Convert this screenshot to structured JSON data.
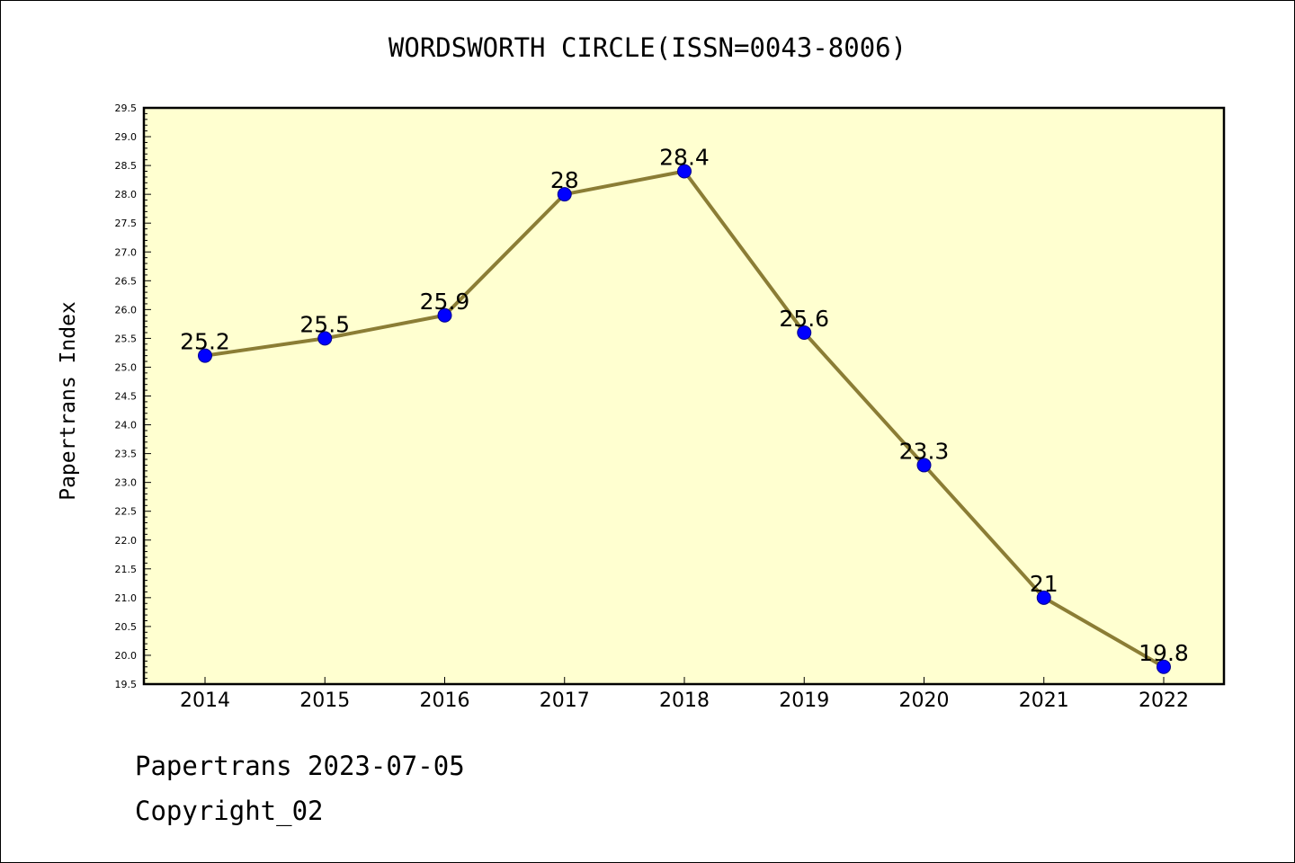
{
  "title": "WORDSWORTH CIRCLE(ISSN=0043-8006)",
  "chart_data": {
    "type": "line",
    "title": "WORDSWORTH CIRCLE(ISSN=0043-8006)",
    "xlabel": "",
    "ylabel": "Papertrans Index",
    "categories": [
      "2014",
      "2015",
      "2016",
      "2017",
      "2018",
      "2019",
      "2020",
      "2021",
      "2022"
    ],
    "values": [
      25.2,
      25.5,
      25.9,
      28,
      28.4,
      25.6,
      23.3,
      21,
      19.8
    ],
    "data_labels": [
      "25.2",
      "25.5",
      "25.9",
      "28",
      "28.4",
      "25.6",
      "23.3",
      "21",
      "19.8"
    ],
    "ylim": [
      19.5,
      29.5
    ],
    "ytick_step": 0.5,
    "grid": false,
    "colors": {
      "plot_background": "#ffffd0",
      "line": "#8b7d35",
      "marker": "#0000ff"
    }
  },
  "footer": {
    "line1": "Papertrans 2023-07-05",
    "line2": "Copyright_02"
  }
}
